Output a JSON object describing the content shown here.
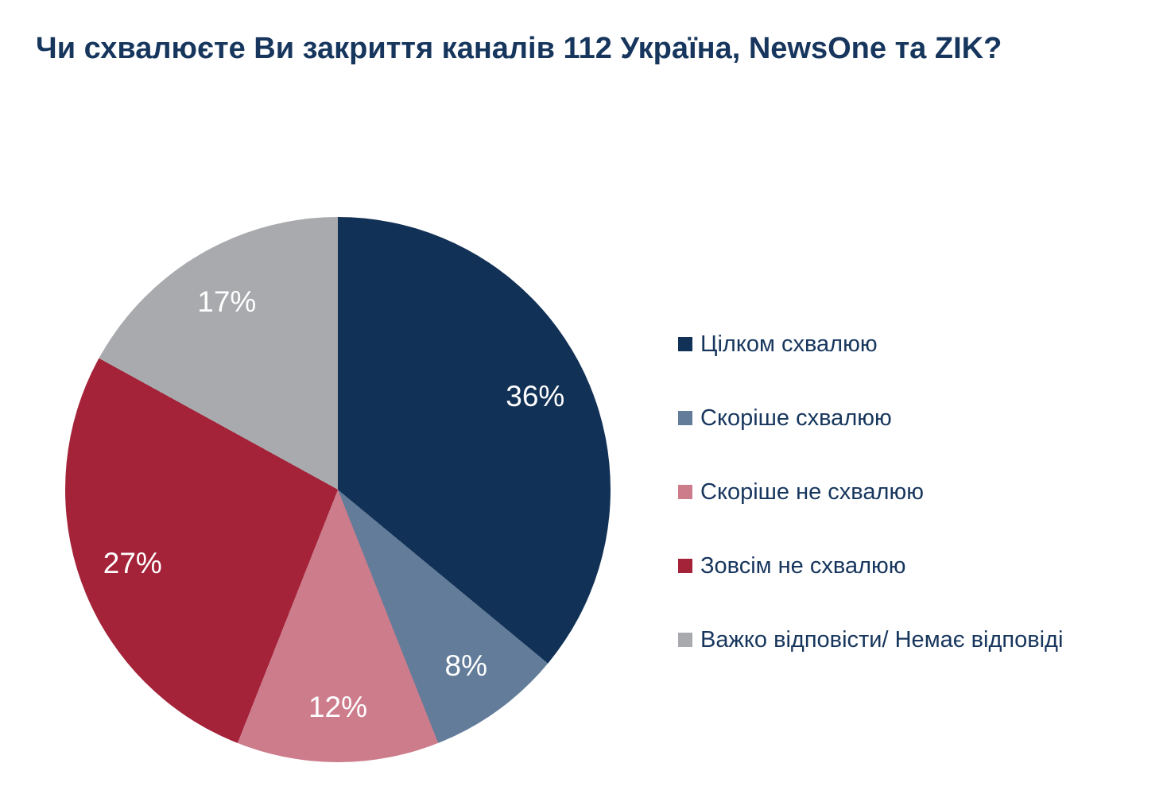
{
  "title": "Чи схвалюєте Ви закриття каналів 112 Україна, NewsOne та ZIK?",
  "colors": {
    "background": "#ffffff",
    "title_text": "#17365d",
    "legend_text": "#17365d",
    "slice_label_text": "#ffffff"
  },
  "chart_data": {
    "type": "pie",
    "title": "Чи схвалюєте Ви закриття каналів 112 Україна, NewsOne та ZIK?",
    "direction": "clockwise",
    "start_angle_deg": 0,
    "legend_position": "right",
    "slices": [
      {
        "label": "Цілком схвалюю",
        "value": 36,
        "data_label": "36%",
        "color": "#123156"
      },
      {
        "label": "Скоріше схвалюю",
        "value": 8,
        "data_label": "8%",
        "color": "#627c99"
      },
      {
        "label": "Скоріше не схвалюю",
        "value": 12,
        "data_label": "12%",
        "color": "#cd7c8c"
      },
      {
        "label": "Зовсім не схвалюю",
        "value": 27,
        "data_label": "27%",
        "color": "#a42339"
      },
      {
        "label": "Важко відповісти/ Немає відповіді",
        "value": 17,
        "data_label": "17%",
        "color": "#a9aaad"
      }
    ]
  }
}
